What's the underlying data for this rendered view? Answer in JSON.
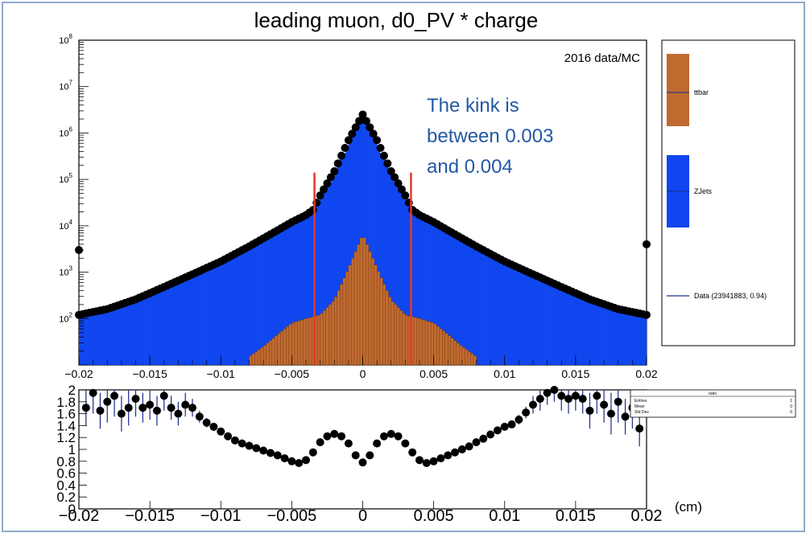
{
  "chart_data": [
    {
      "type": "bar",
      "title": "leading muon, d0_PV * charge",
      "label": "2016 data/MC",
      "annotation": [
        "The kink is",
        "between 0.003",
        "and 0.004"
      ],
      "yscale": "log",
      "xlim": [
        -0.02,
        0.02
      ],
      "ylim": [
        10,
        100000000
      ],
      "x_ticks": [
        "−0.02",
        "−0.015",
        "−0.01",
        "−0.005",
        "0",
        "0.005",
        "0.01",
        "0.015",
        "0.02"
      ],
      "x_tick_values": [
        -0.02,
        -0.015,
        -0.01,
        -0.005,
        0,
        0.005,
        0.01,
        0.015,
        0.02
      ],
      "y_ticks": [
        {
          "base": "10",
          "exp": "2",
          "value": 100
        },
        {
          "base": "10",
          "exp": "3",
          "value": 1000
        },
        {
          "base": "10",
          "exp": "4",
          "value": 10000
        },
        {
          "base": "10",
          "exp": "5",
          "value": 100000
        },
        {
          "base": "10",
          "exp": "6",
          "value": 1000000
        },
        {
          "base": "10",
          "exp": "7",
          "value": 10000000
        },
        {
          "base": "10",
          "exp": "8",
          "value": 100000000
        }
      ],
      "vertical_lines": [
        {
          "x": -0.0034,
          "y_top": 140000,
          "color": "#e03a2a"
        },
        {
          "x": 0.0034,
          "y_top": 140000,
          "color": "#e03a2a"
        }
      ],
      "series": [
        {
          "name": "ZJets",
          "kind": "stacked-histogram",
          "color": "#1046ef",
          "x": [
            -0.02,
            -0.018,
            -0.016,
            -0.014,
            -0.012,
            -0.01,
            -0.008,
            -0.006,
            -0.005,
            -0.004,
            -0.0035,
            -0.003,
            -0.002,
            -0.001,
            0,
            0.001,
            0.002,
            0.003,
            0.0035,
            0.004,
            0.005,
            0.006,
            0.008,
            0.01,
            0.012,
            0.014,
            0.016,
            0.018,
            0.02
          ],
          "values": [
            110,
            170,
            300,
            550,
            1000,
            1900,
            4000,
            8500,
            12000,
            18000,
            25000,
            40000,
            120000,
            600000,
            2500000,
            600000,
            120000,
            40000,
            25000,
            18000,
            12000,
            8500,
            4000,
            1900,
            1000,
            550,
            300,
            170,
            110
          ]
        },
        {
          "name": "ttbar",
          "kind": "stacked-histogram",
          "color": "#c06a30",
          "x": [
            -0.008,
            -0.007,
            -0.006,
            -0.005,
            -0.004,
            -0.003,
            -0.002,
            -0.001,
            0,
            0.001,
            0.002,
            0.003,
            0.004,
            0.005,
            0.006,
            0.007,
            0.008
          ],
          "values": [
            15,
            25,
            45,
            80,
            100,
            120,
            250,
            1200,
            6500,
            1200,
            250,
            120,
            100,
            80,
            45,
            25,
            15
          ]
        },
        {
          "name": "Data (23941883, 0.94)",
          "kind": "points",
          "color": "#000000",
          "x": [
            -0.02,
            -0.018,
            -0.016,
            -0.014,
            -0.012,
            -0.01,
            -0.008,
            -0.006,
            -0.005,
            -0.004,
            -0.0035,
            -0.003,
            -0.002,
            -0.001,
            0,
            0.001,
            0.002,
            0.003,
            0.0035,
            0.004,
            0.005,
            0.006,
            0.008,
            0.01,
            0.012,
            0.014,
            0.016,
            0.018,
            0.02
          ],
          "values": [
            120,
            160,
            260,
            480,
            900,
            1700,
            3600,
            8000,
            12000,
            17000,
            22000,
            45000,
            150000,
            700000,
            2500000,
            700000,
            150000,
            45000,
            22000,
            17000,
            12000,
            8000,
            3600,
            1700,
            900,
            480,
            260,
            160,
            120
          ],
          "overflow_points": [
            {
              "x": -0.02,
              "y": 3000
            },
            {
              "x": 0.02,
              "y": 4000
            }
          ]
        }
      ],
      "legend": [
        {
          "label": "ttbar",
          "color": "#c06a30"
        },
        {
          "label": "ZJets",
          "color": "#1046ef"
        },
        {
          "label": "Data (23941883, 0.94)",
          "color": "#1a2a8a"
        }
      ]
    },
    {
      "type": "scatter",
      "name": "ratio",
      "xlim": [
        -0.02,
        0.02
      ],
      "ylim": [
        0,
        2
      ],
      "unit_label": "(cm)",
      "x_ticks": [
        "−0.02",
        "−0.015",
        "−0.01",
        "−0.005",
        "0",
        "0.005",
        "0.01",
        "0.015",
        "0.02"
      ],
      "x_tick_values": [
        -0.02,
        -0.015,
        -0.01,
        -0.005,
        0,
        0.005,
        0.01,
        0.015,
        0.02
      ],
      "y_ticks": [
        "0",
        "0.2",
        "0.4",
        "0.6",
        "0.8",
        "1",
        "1.2",
        "1.4",
        "1.6",
        "1.8",
        "2"
      ],
      "y_tick_values": [
        0,
        0.2,
        0.4,
        0.6,
        0.8,
        1,
        1.2,
        1.4,
        1.6,
        1.8,
        2
      ],
      "points": {
        "x": [
          -0.0195,
          -0.019,
          -0.0185,
          -0.018,
          -0.0175,
          -0.017,
          -0.0165,
          -0.016,
          -0.0155,
          -0.015,
          -0.0145,
          -0.014,
          -0.0135,
          -0.013,
          -0.0125,
          -0.012,
          -0.0115,
          -0.011,
          -0.0105,
          -0.01,
          -0.0095,
          -0.009,
          -0.0085,
          -0.008,
          -0.0075,
          -0.007,
          -0.0065,
          -0.006,
          -0.0055,
          -0.005,
          -0.0045,
          -0.004,
          -0.0035,
          -0.003,
          -0.0025,
          -0.002,
          -0.0015,
          -0.001,
          -0.0005,
          0,
          0.0005,
          0.001,
          0.0015,
          0.002,
          0.0025,
          0.003,
          0.0035,
          0.004,
          0.0045,
          0.005,
          0.0055,
          0.006,
          0.0065,
          0.007,
          0.0075,
          0.008,
          0.0085,
          0.009,
          0.0095,
          0.01,
          0.0105,
          0.011,
          0.0115,
          0.012,
          0.0125,
          0.013,
          0.0135,
          0.014,
          0.0145,
          0.015,
          0.0155,
          0.016,
          0.0165,
          0.017,
          0.0175,
          0.018,
          0.0185,
          0.019,
          0.0195
        ],
        "y": [
          1.7,
          1.95,
          1.65,
          1.8,
          1.9,
          1.6,
          1.7,
          1.85,
          1.7,
          1.75,
          1.65,
          1.9,
          1.7,
          1.6,
          1.75,
          1.7,
          1.55,
          1.45,
          1.38,
          1.3,
          1.22,
          1.15,
          1.1,
          1.06,
          1.02,
          0.98,
          0.94,
          0.9,
          0.85,
          0.8,
          0.77,
          0.82,
          0.95,
          1.12,
          1.22,
          1.26,
          1.22,
          1.1,
          0.9,
          0.78,
          0.9,
          1.1,
          1.22,
          1.26,
          1.22,
          1.1,
          0.95,
          0.82,
          0.77,
          0.8,
          0.85,
          0.9,
          0.95,
          1.0,
          1.05,
          1.12,
          1.18,
          1.25,
          1.32,
          1.38,
          1.42,
          1.5,
          1.62,
          1.75,
          1.85,
          1.95,
          2.0,
          1.9,
          1.85,
          1.9,
          1.85,
          1.65,
          1.9,
          1.75,
          1.6,
          1.8,
          1.55,
          1.7,
          1.35
        ],
        "errors": [
          0.3,
          0.35,
          0.3,
          0.35,
          0.35,
          0.3,
          0.3,
          0.3,
          0.25,
          0.25,
          0.25,
          0.25,
          0.2,
          0.2,
          0.2,
          0.15,
          0.1,
          0.08,
          0.06,
          0.05,
          0.04,
          0.03,
          0.03,
          0.02,
          0.02,
          0.02,
          0.02,
          0.02,
          0.02,
          0.02,
          0.02,
          0.02,
          0.02,
          0.02,
          0.02,
          0.02,
          0.02,
          0.02,
          0.02,
          0.02,
          0.02,
          0.02,
          0.02,
          0.02,
          0.02,
          0.02,
          0.02,
          0.02,
          0.02,
          0.02,
          0.02,
          0.02,
          0.02,
          0.02,
          0.02,
          0.02,
          0.03,
          0.03,
          0.04,
          0.05,
          0.06,
          0.08,
          0.1,
          0.15,
          0.2,
          0.2,
          0.2,
          0.25,
          0.25,
          0.25,
          0.25,
          0.3,
          0.3,
          0.3,
          0.35,
          0.35,
          0.3,
          0.35,
          0.3
        ]
      },
      "stats_box": {
        "title": "ratio",
        "rows": [
          {
            "label": "Entries",
            "value": "1"
          },
          {
            "label": "Mean",
            "value": "0"
          },
          {
            "label": "Std Dev",
            "value": "0"
          }
        ]
      }
    }
  ]
}
